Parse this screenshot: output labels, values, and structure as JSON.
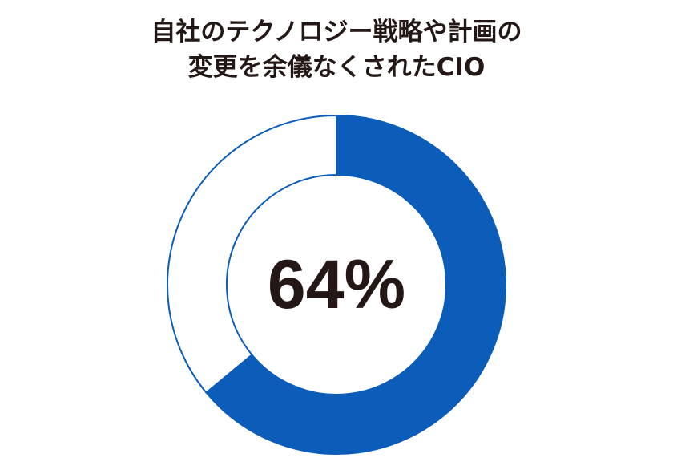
{
  "chart_data": {
    "type": "donut",
    "title": [
      "自社のテクノロジー戦略や計画の",
      "変更を余儀なくされたCIO"
    ],
    "values": [
      64,
      36
    ],
    "value_labels": [
      "64%"
    ],
    "colors": [
      "#0b5db9",
      "#ffffff"
    ],
    "outline": "#0b5db9"
  }
}
